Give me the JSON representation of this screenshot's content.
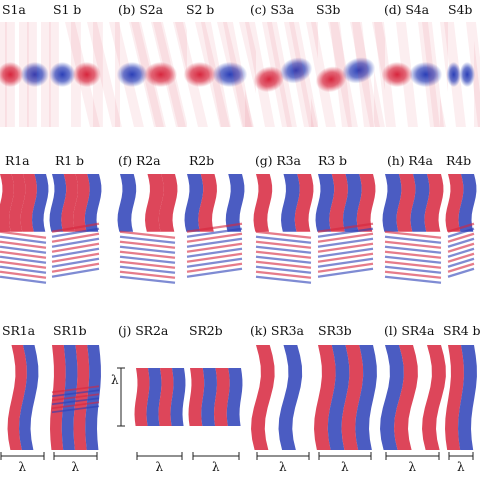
{
  "figure": {
    "rows": [
      {
        "id": "S",
        "labels": [
          "S1a",
          "S1 b",
          "(b) S2a",
          "S2 b",
          "(c) S3a",
          "S3b",
          "(d) S4a",
          "S4b"
        ]
      },
      {
        "id": "R",
        "labels": [
          "R1a",
          "R1 b",
          "(f) R2a",
          "R2b",
          "(g) R3a",
          "R3 b",
          "(h) R4a",
          "R4b"
        ]
      },
      {
        "id": "SR",
        "labels": [
          "SR1a",
          "SR1b",
          "(j) SR2a",
          "SR2b",
          "(k) SR3a",
          "SR3b",
          "(l) SR4a",
          "SR4 b"
        ]
      }
    ],
    "scale_symbol": "λ",
    "colors": {
      "positive": "#d7263d",
      "negative": "#2b3fb7",
      "neutral": "#ffffff"
    }
  }
}
